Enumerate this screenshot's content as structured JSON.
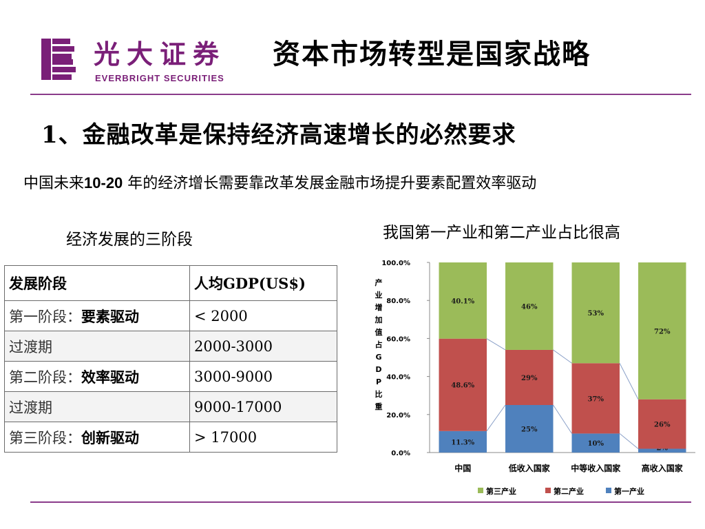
{
  "header": {
    "logo_cn": "光大证券",
    "logo_en": "EVERBRIGHT SECURITIES",
    "title": "资本市场转型是国家战略",
    "brand_color": "#7a1f78"
  },
  "heading": "1、金融改革是保持经济高速增长的必然要求",
  "subtitle": {
    "before": "中国未来",
    "bold": "10-20",
    "after": " 年的经济增长需要靠改革发展金融市场提升要素配置效率驱动"
  },
  "left_caption": "经济发展的三阶段",
  "right_caption": "我国第一产业和第二产业占比很高",
  "stage_table": {
    "headers": [
      "发展阶段",
      "人均GDP(US$)"
    ],
    "rows": [
      {
        "prefix": "第一阶段：",
        "stage": "要素驱动",
        "gdp": "< 2000"
      },
      {
        "prefix": "",
        "stage": "过渡期",
        "gdp": "2000-3000"
      },
      {
        "prefix": "第二阶段：",
        "stage": "效率驱动",
        "gdp": "3000-9000"
      },
      {
        "prefix": "",
        "stage": "过渡期",
        "gdp": "9000-17000"
      },
      {
        "prefix": "第三阶段：",
        "stage": "创新驱动",
        "gdp": "> 17000"
      }
    ]
  },
  "chart_data": {
    "type": "bar",
    "stacked": true,
    "categories": [
      "中国",
      "低收入国家",
      "中等收入国家",
      "高收入国家"
    ],
    "ylabel": "产业增加值占GDP比重",
    "ylim": [
      0,
      100
    ],
    "yticks": [
      "0.0%",
      "20.0%",
      "40.0%",
      "60.0%",
      "80.0%",
      "100.0%"
    ],
    "series": [
      {
        "name": "第一产业",
        "color": "#4f81bd",
        "values": [
          11.3,
          25,
          10,
          2
        ],
        "labels": [
          "11.3%",
          "25%",
          "10%",
          "2%"
        ]
      },
      {
        "name": "第二产业",
        "color": "#c0504d",
        "values": [
          48.6,
          29,
          37,
          26
        ],
        "labels": [
          "48.6%",
          "29%",
          "37%",
          "26%"
        ]
      },
      {
        "name": "第三产业",
        "color": "#9bbb59",
        "values": [
          40.1,
          46,
          53,
          72
        ],
        "labels": [
          "40.1%",
          "46%",
          "53%",
          "72%"
        ]
      }
    ],
    "legend_order": [
      "第三产业",
      "第二产业",
      "第一产业"
    ],
    "legend_position": "bottom",
    "connector_lines": true
  }
}
